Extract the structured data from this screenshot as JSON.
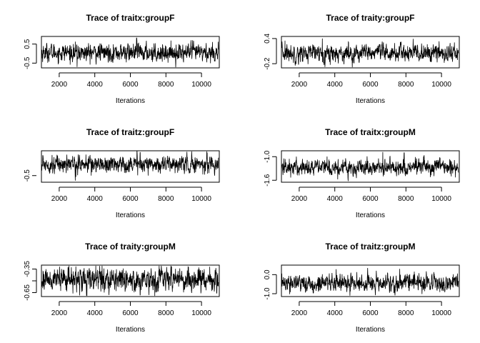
{
  "chart_data": [
    {
      "type": "line",
      "title": "Trace of traitx:groupF",
      "xlabel": "Iterations",
      "ylabel": "",
      "xlim": [
        1000,
        11000
      ],
      "ylim": [
        -0.75,
        0.9
      ],
      "x_ticks": [
        2000,
        4000,
        6000,
        8000,
        10000
      ],
      "y_ticks": [
        -0.5,
        0.5
      ],
      "y_tick_labels": [
        "-0.5",
        "0.5"
      ],
      "series": [
        {
          "x_start": 1000,
          "x_end": 10950,
          "center": 0.05,
          "spread": 0.22,
          "spikes": [
            [
              6350,
              0.82
            ],
            [
              3000,
              -0.7
            ],
            [
              9500,
              0.7
            ]
          ]
        }
      ]
    },
    {
      "type": "line",
      "title": "Trace of traity:groupF",
      "xlabel": "Iterations",
      "ylabel": "",
      "xlim": [
        1000,
        11000
      ],
      "ylim": [
        -0.3,
        0.45
      ],
      "x_ticks": [
        2000,
        4000,
        6000,
        8000,
        10000
      ],
      "y_ticks": [
        -0.2,
        0.4
      ],
      "y_tick_labels": [
        "-0.2",
        "0.4"
      ],
      "series": [
        {
          "x_start": 1000,
          "x_end": 10950,
          "center": 0.05,
          "spread": 0.1,
          "spikes": [
            [
              3300,
              0.4
            ],
            [
              1200,
              0.35
            ]
          ]
        }
      ]
    },
    {
      "type": "line",
      "title": "Trace of traitz:groupF",
      "xlabel": "Iterations",
      "ylabel": "",
      "xlim": [
        1000,
        11000
      ],
      "ylim": [
        -0.7,
        0.25
      ],
      "x_ticks": [
        2000,
        4000,
        6000,
        8000,
        10000
      ],
      "y_ticks": [
        -0.5
      ],
      "y_tick_labels": [
        "-0.5"
      ],
      "series": [
        {
          "x_start": 1000,
          "x_end": 10950,
          "center": -0.15,
          "spread": 0.12,
          "spikes": [
            [
              6550,
              0.2
            ],
            [
              2900,
              -0.65
            ],
            [
              3800,
              -0.5
            ]
          ]
        }
      ]
    },
    {
      "type": "line",
      "title": "Trace of traitx:groupM",
      "xlabel": "Iterations",
      "ylabel": "",
      "xlim": [
        1000,
        11000
      ],
      "ylim": [
        -1.65,
        -0.85
      ],
      "x_ticks": [
        2000,
        4000,
        6000,
        8000,
        10000
      ],
      "y_ticks": [
        -1.6,
        -1.0
      ],
      "y_tick_labels": [
        "-1.6",
        "-1.0"
      ],
      "series": [
        {
          "x_start": 1000,
          "x_end": 10950,
          "center": -1.27,
          "spread": 0.1,
          "spikes": [
            [
              4750,
              -1.62
            ],
            [
              6700,
              -0.88
            ],
            [
              7900,
              -0.9
            ]
          ]
        }
      ]
    },
    {
      "type": "line",
      "title": "Trace of traity:groupM",
      "xlabel": "Iterations",
      "ylabel": "",
      "xlim": [
        1000,
        11000
      ],
      "ylim": [
        -0.7,
        -0.3
      ],
      "x_ticks": [
        2000,
        4000,
        6000,
        8000,
        10000
      ],
      "y_ticks": [
        -0.65,
        -0.5,
        -0.35
      ],
      "y_tick_labels": [
        "-0.65",
        "",
        "-0.35"
      ],
      "series": [
        {
          "x_start": 1000,
          "x_end": 10950,
          "center": -0.48,
          "spread": 0.07,
          "spikes": [
            [
              6550,
              -0.68
            ],
            [
              2500,
              -0.33
            ]
          ]
        }
      ]
    },
    {
      "type": "line",
      "title": "Trace of traitz:groupM",
      "xlabel": "Iterations",
      "ylabel": "",
      "xlim": [
        1000,
        11000
      ],
      "ylim": [
        -1.15,
        0.5
      ],
      "x_ticks": [
        2000,
        4000,
        6000,
        8000,
        10000
      ],
      "y_ticks": [
        -1.0,
        0.0
      ],
      "y_tick_labels": [
        "-1.0",
        "0.0"
      ],
      "series": [
        {
          "x_start": 1000,
          "x_end": 10950,
          "center": -0.45,
          "spread": 0.22,
          "spikes": [
            [
              4850,
              -1.1
            ],
            [
              7650,
              0.3
            ]
          ]
        }
      ]
    }
  ]
}
